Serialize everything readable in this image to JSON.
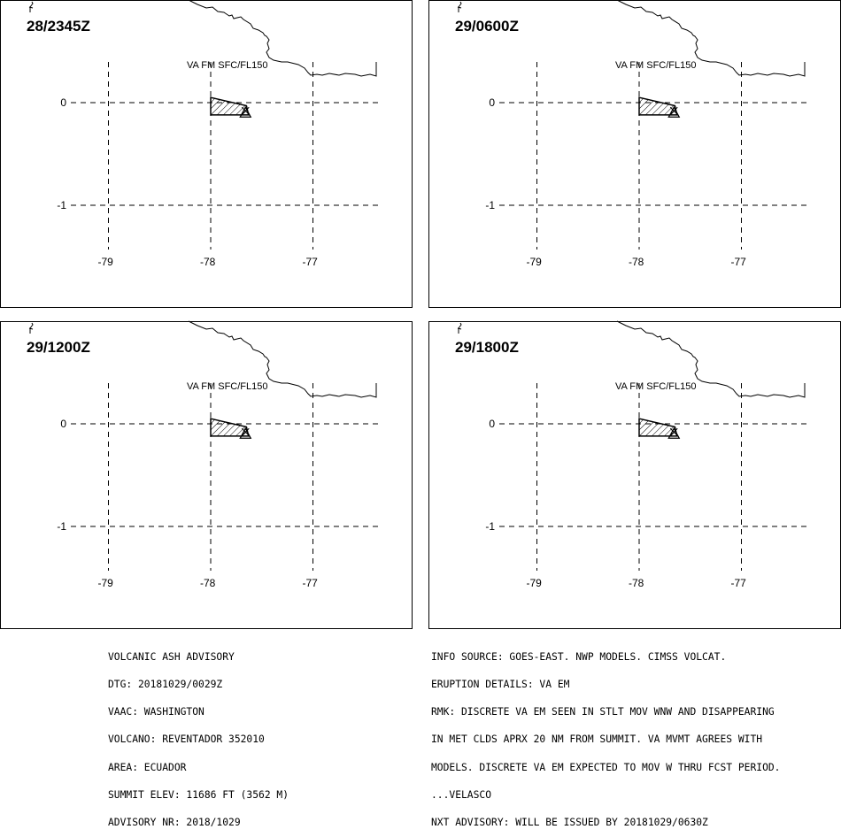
{
  "panels": [
    {
      "time_label": "28/2345Z",
      "cloud_label": "VA FM SFC/FL150"
    },
    {
      "time_label": "29/0600Z",
      "cloud_label": "VA FM SFC/FL150"
    },
    {
      "time_label": "29/1200Z",
      "cloud_label": "VA FM SFC/FL150"
    },
    {
      "time_label": "29/1800Z",
      "cloud_label": "VA FM SFC/FL150"
    }
  ],
  "grid": {
    "lat_labels": [
      "0",
      "-1"
    ],
    "lon_labels": [
      "-79",
      "-78",
      "-77"
    ]
  },
  "map": {
    "latitudes": [
      0,
      -1
    ],
    "longitudes": [
      -79,
      -78,
      -77
    ],
    "volcano": {
      "lat": -0.08,
      "lon": -77.66
    },
    "ash_polygon": [
      [
        0.05,
        -78.0
      ],
      [
        -0.12,
        -78.0
      ],
      [
        -0.12,
        -77.63
      ],
      [
        -0.03,
        -77.65
      ]
    ]
  },
  "advisory_left": [
    "VOLCANIC ASH ADVISORY",
    "DTG: 20181029/0029Z",
    "VAAC: WASHINGTON",
    "VOLCANO: REVENTADOR 352010",
    "AREA: ECUADOR",
    "SUMMIT ELEV: 11686 FT (3562 M)",
    "ADVISORY NR: 2018/1029"
  ],
  "advisory_right": [
    "INFO SOURCE: GOES-EAST. NWP MODELS. CIMSS VOLCAT.",
    "ERUPTION DETAILS: VA EM",
    "RMK: DISCRETE VA EM SEEN IN STLT MOV WNW AND DISAPPEARING",
    "IN MET CLDS APRX 20 NM FROM SUMMIT. VA MVMT AGREES WITH",
    "MODELS. DISCRETE VA EM EXPECTED TO MOV W THRU FCST PERIOD.",
    "...VELASCO",
    "NXT ADVISORY: WILL BE ISSUED BY 20181029/0630Z"
  ]
}
